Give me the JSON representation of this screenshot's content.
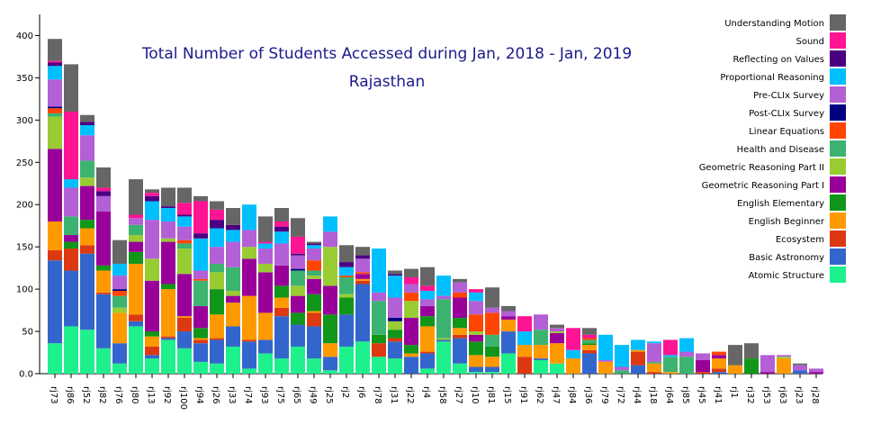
{
  "chart_data": {
    "type": "bar",
    "stacked": true,
    "title": "Total Number of Students Accessed during Jan, 2018 - Jan, 2019",
    "subtitle": "Rajasthan",
    "xlabel": "",
    "ylabel": "",
    "ylim": [
      0,
      425
    ],
    "yticks": [
      0,
      50,
      100,
      150,
      200,
      250,
      300,
      350,
      400
    ],
    "ytick_labels": [
      "0.0",
      "50",
      "100",
      "150",
      "200",
      "250",
      "300",
      "350",
      "400"
    ],
    "legend_position": "top-right",
    "categories": [
      "rj73",
      "rj86",
      "rj52",
      "rj82",
      "rj76",
      "rj80",
      "rj13",
      "rj92",
      "rj100",
      "rj94",
      "rj26",
      "rj33",
      "rj74",
      "rj93",
      "rj75",
      "rj65",
      "rj49",
      "rj25",
      "rj2",
      "rj6",
      "rj78",
      "rj31",
      "rj22",
      "rj4",
      "rj58",
      "rj27",
      "rj10",
      "rj81",
      "rj15",
      "rj91",
      "rj62",
      "rj47",
      "rj84",
      "rj36",
      "rj79",
      "rj72",
      "rj44",
      "rj18",
      "rj64",
      "rj85",
      "rj45",
      "rj41",
      "rj1",
      "rj32",
      "rj53",
      "rj63",
      "rj23",
      "rj28"
    ],
    "series": [
      {
        "name": "Atomic Structure",
        "color": "#1ef08c",
        "values": [
          36,
          56,
          52,
          30,
          12,
          56,
          18,
          40,
          30,
          14,
          12,
          32,
          6,
          24,
          18,
          32,
          18,
          4,
          32,
          38,
          20,
          18,
          0,
          6,
          38,
          12,
          2,
          2,
          24,
          0,
          16,
          12,
          0,
          0,
          0,
          0,
          0,
          0,
          0,
          0,
          0,
          0,
          0,
          0,
          0,
          0,
          0,
          0
        ]
      },
      {
        "name": "Basic Astronomy",
        "color": "#3366cc",
        "values": [
          98,
          66,
          90,
          64,
          24,
          6,
          4,
          2,
          20,
          22,
          28,
          24,
          32,
          16,
          50,
          26,
          38,
          16,
          38,
          68,
          0,
          20,
          20,
          18,
          2,
          30,
          6,
          6,
          26,
          0,
          2,
          0,
          0,
          24,
          0,
          0,
          10,
          0,
          0,
          0,
          0,
          2,
          0,
          0,
          0,
          0,
          4,
          0
        ]
      },
      {
        "name": "Ecosystem",
        "color": "#dc3912",
        "values": [
          12,
          26,
          10,
          2,
          0,
          8,
          10,
          2,
          16,
          4,
          2,
          0,
          2,
          0,
          10,
          0,
          16,
          0,
          0,
          4,
          16,
          4,
          0,
          2,
          0,
          4,
          0,
          0,
          0,
          20,
          0,
          0,
          0,
          4,
          0,
          0,
          16,
          2,
          0,
          0,
          2,
          4,
          0,
          0,
          0,
          0,
          0,
          0
        ]
      },
      {
        "name": "English Beginner",
        "color": "#ff9900",
        "values": [
          34,
          0,
          20,
          26,
          36,
          60,
          12,
          56,
          2,
          2,
          28,
          28,
          52,
          32,
          12,
          0,
          2,
          16,
          0,
          2,
          0,
          0,
          4,
          30,
          0,
          8,
          14,
          12,
          14,
          14,
          16,
          24,
          18,
          6,
          14,
          0,
          2,
          10,
          2,
          0,
          0,
          12,
          10,
          0,
          0,
          18,
          0,
          0
        ]
      },
      {
        "name": "English Elementary",
        "color": "#109618",
        "values": [
          0,
          8,
          10,
          6,
          0,
          14,
          6,
          6,
          0,
          12,
          30,
          0,
          0,
          0,
          14,
          14,
          20,
          34,
          20,
          0,
          10,
          10,
          10,
          12,
          0,
          12,
          16,
          12,
          0,
          0,
          0,
          0,
          0,
          2,
          0,
          0,
          0,
          0,
          0,
          0,
          0,
          0,
          0,
          18,
          0,
          0,
          0,
          0
        ]
      },
      {
        "name": "Geometric Reasoning Part I",
        "color": "#990099",
        "values": [
          86,
          8,
          40,
          64,
          0,
          12,
          60,
          50,
          50,
          26,
          0,
          8,
          44,
          48,
          24,
          20,
          18,
          34,
          0,
          6,
          0,
          0,
          32,
          12,
          0,
          24,
          8,
          0,
          4,
          0,
          0,
          12,
          0,
          0,
          0,
          0,
          0,
          0,
          0,
          0,
          14,
          4,
          0,
          0,
          2,
          0,
          0,
          2
        ]
      },
      {
        "name": "Geometric Reasoning Part II",
        "color": "#99cc33",
        "values": [
          38,
          0,
          10,
          0,
          6,
          8,
          26,
          4,
          30,
          0,
          20,
          6,
          14,
          10,
          0,
          12,
          4,
          46,
          4,
          0,
          0,
          10,
          20,
          0,
          2,
          0,
          4,
          0,
          0,
          0,
          0,
          2,
          0,
          0,
          0,
          0,
          0,
          0,
          0,
          0,
          0,
          0,
          0,
          0,
          0,
          2,
          0,
          0
        ]
      },
      {
        "name": "Health and Disease",
        "color": "#3cb371",
        "values": [
          4,
          22,
          20,
          0,
          14,
          12,
          0,
          0,
          6,
          30,
          10,
          28,
          0,
          0,
          0,
          18,
          6,
          0,
          20,
          0,
          40,
          0,
          0,
          0,
          46,
          0,
          0,
          14,
          0,
          0,
          18,
          0,
          0,
          4,
          0,
          4,
          0,
          2,
          18,
          20,
          0,
          0,
          0,
          0,
          0,
          0,
          0,
          0
        ]
      },
      {
        "name": "Linear Equations",
        "color": "#ff4500",
        "values": [
          6,
          0,
          0,
          0,
          6,
          0,
          0,
          0,
          4,
          2,
          0,
          0,
          0,
          0,
          0,
          0,
          12,
          0,
          2,
          2,
          0,
          0,
          10,
          0,
          0,
          6,
          20,
          26,
          0,
          0,
          0,
          0,
          0,
          2,
          0,
          0,
          0,
          0,
          0,
          0,
          0,
          4,
          0,
          0,
          0,
          0,
          0,
          0
        ]
      },
      {
        "name": "Post-CLIx Survey",
        "color": "#000080",
        "values": [
          2,
          0,
          0,
          0,
          2,
          0,
          0,
          0,
          0,
          0,
          0,
          0,
          0,
          0,
          0,
          2,
          0,
          0,
          0,
          0,
          0,
          4,
          0,
          0,
          0,
          0,
          0,
          0,
          0,
          0,
          0,
          0,
          0,
          0,
          0,
          0,
          0,
          0,
          0,
          0,
          0,
          0,
          0,
          0,
          0,
          0,
          0,
          0
        ]
      },
      {
        "name": "Pre-CLIx Survey",
        "color": "#b35fd6",
        "values": [
          32,
          34,
          30,
          18,
          16,
          8,
          46,
          20,
          16,
          10,
          20,
          30,
          20,
          18,
          26,
          16,
          14,
          18,
          0,
          16,
          10,
          24,
          10,
          8,
          4,
          12,
          16,
          6,
          6,
          0,
          18,
          4,
          0,
          0,
          2,
          4,
          0,
          22,
          0,
          6,
          8,
          0,
          0,
          0,
          20,
          2,
          6,
          4
        ]
      },
      {
        "name": "Proportional Reasoning",
        "color": "#00bfff",
        "values": [
          16,
          10,
          12,
          0,
          14,
          0,
          22,
          16,
          12,
          38,
          22,
          14,
          30,
          6,
          14,
          0,
          4,
          18,
          10,
          0,
          52,
          26,
          0,
          10,
          24,
          0,
          10,
          0,
          0,
          16,
          0,
          0,
          10,
          0,
          30,
          26,
          12,
          2,
          2,
          16,
          0,
          0,
          0,
          0,
          0,
          0,
          0,
          0
        ]
      },
      {
        "name": "Reflecting on Values",
        "color": "#4b0082",
        "values": [
          4,
          0,
          4,
          6,
          0,
          0,
          6,
          2,
          2,
          6,
          10,
          6,
          0,
          0,
          6,
          2,
          2,
          0,
          6,
          4,
          0,
          2,
          0,
          0,
          0,
          0,
          0,
          0,
          0,
          0,
          0,
          0,
          0,
          0,
          0,
          0,
          0,
          0,
          0,
          0,
          0,
          0,
          0,
          0,
          0,
          0,
          0,
          0
        ]
      },
      {
        "name": "Sound",
        "color": "#ff1493",
        "values": [
          2,
          80,
          0,
          4,
          0,
          4,
          4,
          0,
          14,
          38,
          12,
          0,
          0,
          2,
          6,
          20,
          0,
          0,
          0,
          0,
          0,
          0,
          8,
          6,
          0,
          0,
          4,
          0,
          0,
          18,
          0,
          0,
          26,
          4,
          0,
          0,
          0,
          0,
          18,
          0,
          0,
          0,
          0,
          0,
          0,
          0,
          0,
          0
        ]
      },
      {
        "name": "Understanding Motion",
        "color": "#666666",
        "values": [
          26,
          56,
          8,
          24,
          28,
          42,
          4,
          22,
          18,
          6,
          10,
          20,
          0,
          30,
          16,
          22,
          2,
          0,
          20,
          10,
          0,
          4,
          10,
          22,
          0,
          4,
          0,
          24,
          6,
          0,
          0,
          4,
          0,
          8,
          0,
          0,
          0,
          0,
          0,
          0,
          0,
          0,
          24,
          18,
          0,
          0,
          2,
          0
        ]
      }
    ]
  }
}
